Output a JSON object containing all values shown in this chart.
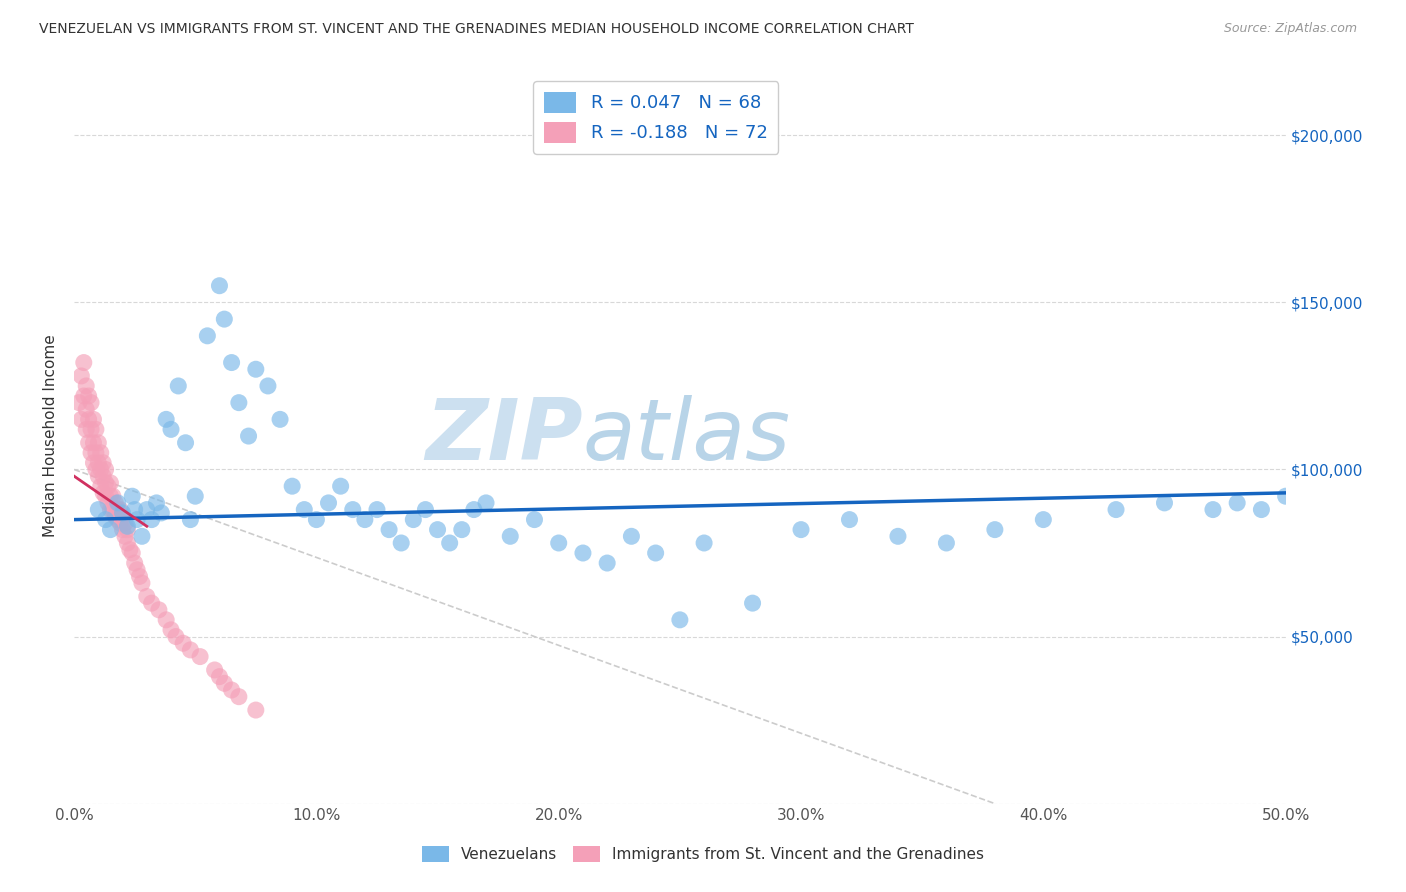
{
  "title": "VENEZUELAN VS IMMIGRANTS FROM ST. VINCENT AND THE GRENADINES MEDIAN HOUSEHOLD INCOME CORRELATION CHART",
  "source": "Source: ZipAtlas.com",
  "ylabel": "Median Household Income",
  "xlim": [
    0.0,
    0.5
  ],
  "ylim": [
    0,
    220000
  ],
  "xticks": [
    0.0,
    0.1,
    0.2,
    0.3,
    0.4,
    0.5
  ],
  "xtick_labels": [
    "0.0%",
    "10.0%",
    "20.0%",
    "30.0%",
    "40.0%",
    "50.0%"
  ],
  "yticks": [
    0,
    50000,
    100000,
    150000,
    200000
  ],
  "ytick_right_labels": [
    "",
    "$50,000",
    "$100,000",
    "$150,000",
    "$200,000"
  ],
  "blue_R": 0.047,
  "blue_N": 68,
  "pink_R": -0.188,
  "pink_N": 72,
  "blue_color": "#7ab8e8",
  "pink_color": "#f4a0b8",
  "blue_line_color": "#1565c0",
  "pink_line_color": "#d03060",
  "watermark": "ZIPatlas",
  "watermark_color_zip": "#c8dff0",
  "watermark_color_atlas": "#b8d4e8",
  "legend_label_blue": "Venezuelans",
  "legend_label_pink": "Immigrants from St. Vincent and the Grenadines",
  "blue_x": [
    0.01,
    0.013,
    0.015,
    0.018,
    0.02,
    0.022,
    0.024,
    0.025,
    0.026,
    0.028,
    0.03,
    0.032,
    0.034,
    0.036,
    0.038,
    0.04,
    0.043,
    0.046,
    0.048,
    0.05,
    0.055,
    0.06,
    0.062,
    0.065,
    0.068,
    0.072,
    0.075,
    0.08,
    0.085,
    0.09,
    0.095,
    0.1,
    0.105,
    0.11,
    0.115,
    0.12,
    0.125,
    0.13,
    0.135,
    0.14,
    0.145,
    0.15,
    0.155,
    0.16,
    0.165,
    0.17,
    0.18,
    0.19,
    0.2,
    0.21,
    0.22,
    0.23,
    0.24,
    0.25,
    0.26,
    0.28,
    0.3,
    0.32,
    0.34,
    0.36,
    0.38,
    0.4,
    0.43,
    0.45,
    0.47,
    0.48,
    0.49,
    0.5
  ],
  "blue_y": [
    88000,
    85000,
    82000,
    90000,
    87000,
    83000,
    92000,
    88000,
    85000,
    80000,
    88000,
    85000,
    90000,
    87000,
    115000,
    112000,
    125000,
    108000,
    85000,
    92000,
    140000,
    155000,
    145000,
    132000,
    120000,
    110000,
    130000,
    125000,
    115000,
    95000,
    88000,
    85000,
    90000,
    95000,
    88000,
    85000,
    88000,
    82000,
    78000,
    85000,
    88000,
    82000,
    78000,
    82000,
    88000,
    90000,
    80000,
    85000,
    78000,
    75000,
    72000,
    80000,
    75000,
    55000,
    78000,
    60000,
    82000,
    85000,
    80000,
    78000,
    82000,
    85000,
    88000,
    90000,
    88000,
    90000,
    88000,
    92000
  ],
  "pink_x": [
    0.002,
    0.003,
    0.003,
    0.004,
    0.004,
    0.005,
    0.005,
    0.005,
    0.006,
    0.006,
    0.006,
    0.007,
    0.007,
    0.007,
    0.008,
    0.008,
    0.008,
    0.009,
    0.009,
    0.009,
    0.01,
    0.01,
    0.01,
    0.011,
    0.011,
    0.011,
    0.012,
    0.012,
    0.012,
    0.013,
    0.013,
    0.013,
    0.014,
    0.014,
    0.015,
    0.015,
    0.015,
    0.016,
    0.016,
    0.017,
    0.017,
    0.018,
    0.018,
    0.019,
    0.019,
    0.02,
    0.02,
    0.021,
    0.021,
    0.022,
    0.022,
    0.023,
    0.024,
    0.025,
    0.026,
    0.027,
    0.028,
    0.03,
    0.032,
    0.035,
    0.038,
    0.04,
    0.042,
    0.045,
    0.048,
    0.052,
    0.058,
    0.06,
    0.062,
    0.065,
    0.068,
    0.075
  ],
  "pink_y": [
    120000,
    128000,
    115000,
    122000,
    132000,
    118000,
    112000,
    125000,
    108000,
    115000,
    122000,
    105000,
    112000,
    120000,
    102000,
    108000,
    115000,
    100000,
    105000,
    112000,
    98000,
    102000,
    108000,
    95000,
    100000,
    105000,
    93000,
    98000,
    102000,
    92000,
    96000,
    100000,
    90000,
    95000,
    88000,
    92000,
    96000,
    88000,
    92000,
    86000,
    90000,
    85000,
    88000,
    84000,
    88000,
    82000,
    86000,
    80000,
    84000,
    78000,
    82000,
    76000,
    75000,
    72000,
    70000,
    68000,
    66000,
    62000,
    60000,
    58000,
    55000,
    52000,
    50000,
    48000,
    46000,
    44000,
    40000,
    38000,
    36000,
    34000,
    32000,
    28000
  ],
  "diag_line_x": [
    0.0,
    0.38
  ],
  "diag_line_y": [
    100000,
    0
  ]
}
